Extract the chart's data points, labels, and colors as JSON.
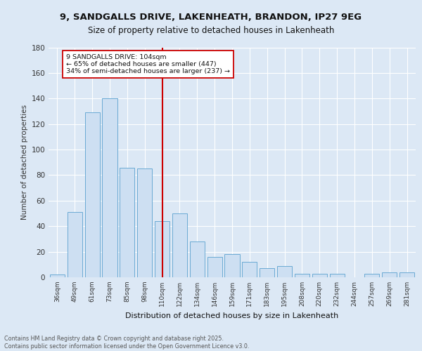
{
  "title_line1": "9, SANDGALLS DRIVE, LAKENHEATH, BRANDON, IP27 9EG",
  "title_line2": "Size of property relative to detached houses in Lakenheath",
  "xlabel": "Distribution of detached houses by size in Lakenheath",
  "ylabel": "Number of detached properties",
  "categories": [
    "36sqm",
    "49sqm",
    "61sqm",
    "73sqm",
    "85sqm",
    "98sqm",
    "110sqm",
    "122sqm",
    "134sqm",
    "146sqm",
    "159sqm",
    "171sqm",
    "183sqm",
    "195sqm",
    "208sqm",
    "220sqm",
    "232sqm",
    "244sqm",
    "257sqm",
    "269sqm",
    "281sqm"
  ],
  "values": [
    2,
    51,
    129,
    140,
    86,
    85,
    44,
    50,
    28,
    16,
    18,
    12,
    7,
    9,
    3,
    3,
    3,
    0,
    3,
    4,
    4
  ],
  "bar_color": "#cddff2",
  "bar_edge_color": "#6aaad4",
  "vline_x": 6.0,
  "vline_color": "#cc0000",
  "annotation_text": "9 SANDGALLS DRIVE: 104sqm\n← 65% of detached houses are smaller (447)\n34% of semi-detached houses are larger (237) →",
  "annotation_box_color": "#ffffff",
  "annotation_box_edge": "#cc0000",
  "bg_color": "#dce8f5",
  "plot_bg_color": "#dce8f5",
  "footer_text": "Contains HM Land Registry data © Crown copyright and database right 2025.\nContains public sector information licensed under the Open Government Licence v3.0.",
  "ylim": [
    0,
    180
  ],
  "yticks": [
    0,
    20,
    40,
    60,
    80,
    100,
    120,
    140,
    160,
    180
  ]
}
